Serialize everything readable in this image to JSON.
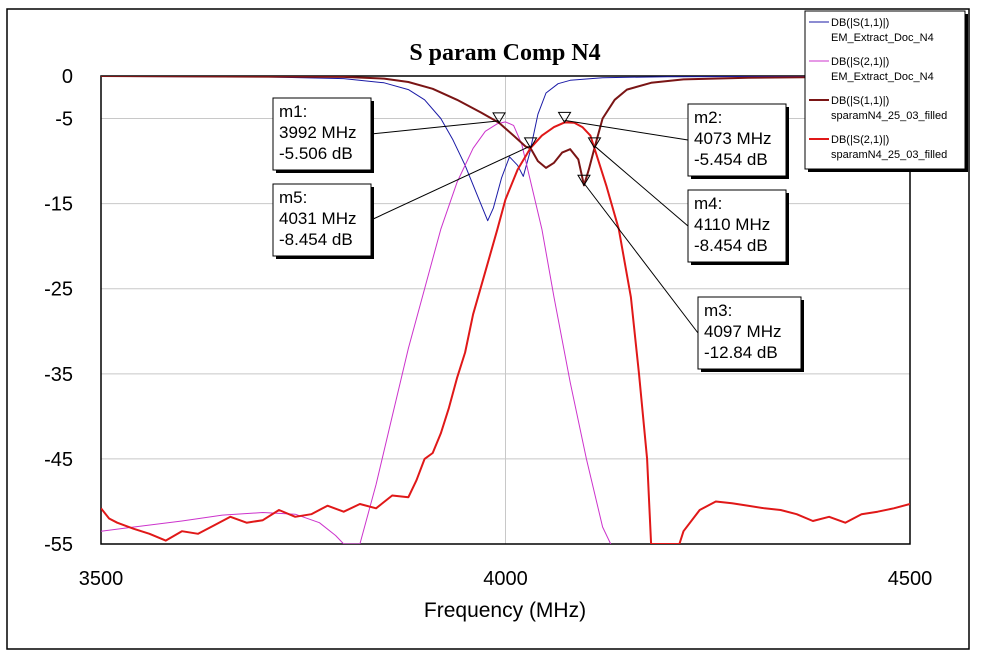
{
  "chart_data": {
    "type": "line",
    "title": "S param Comp N4",
    "xlabel": "Frequency (MHz)",
    "ylabel": "",
    "xlim": [
      3500,
      4500
    ],
    "ylim": [
      -55,
      0
    ],
    "x_ticks": [
      3500,
      4000,
      4500
    ],
    "y_ticks": [
      0,
      -5,
      -15,
      -25,
      -35,
      -45,
      -55
    ],
    "x_tick_labels": [
      "3500",
      "4000",
      "4500"
    ],
    "y_tick_labels": [
      "0",
      "-5",
      "-15",
      "-25",
      "-35",
      "-45",
      "-55"
    ],
    "grid": true,
    "legend_position": "top-right, outside plot",
    "series": [
      {
        "name": "DB(|S(1,1)|)",
        "source": "EM_Extract_Doc_N4",
        "color": "#1a1aa6",
        "points": [
          [
            3500,
            -0.05
          ],
          [
            3700,
            -0.1
          ],
          [
            3800,
            -0.3
          ],
          [
            3850,
            -0.8
          ],
          [
            3880,
            -1.6
          ],
          [
            3900,
            -2.8
          ],
          [
            3920,
            -5
          ],
          [
            3935,
            -7.5
          ],
          [
            3950,
            -10.5
          ],
          [
            3965,
            -14
          ],
          [
            3978,
            -17
          ],
          [
            3985,
            -15.5
          ],
          [
            3995,
            -12
          ],
          [
            4005,
            -9.5
          ],
          [
            4015,
            -10.5
          ],
          [
            4022,
            -11.8
          ],
          [
            4030,
            -9
          ],
          [
            4040,
            -4.5
          ],
          [
            4050,
            -2
          ],
          [
            4065,
            -0.9
          ],
          [
            4080,
            -0.5
          ],
          [
            4120,
            -0.2
          ],
          [
            4200,
            -0.08
          ],
          [
            4500,
            -0.02
          ]
        ]
      },
      {
        "name": "DB(|S(2,1)|)",
        "source": "EM_Extract_Doc_N4",
        "color": "#cc33cc",
        "points": [
          [
            3500,
            -53.5
          ],
          [
            3600,
            -52.3
          ],
          [
            3650,
            -51.6
          ],
          [
            3700,
            -51.3
          ],
          [
            3740,
            -51.5
          ],
          [
            3770,
            -52.5
          ],
          [
            3790,
            -54
          ],
          [
            3800,
            -55
          ],
          [
            3820,
            -55
          ],
          [
            3840,
            -48
          ],
          [
            3860,
            -40
          ],
          [
            3880,
            -32
          ],
          [
            3900,
            -25
          ],
          [
            3920,
            -18
          ],
          [
            3940,
            -12.5
          ],
          [
            3960,
            -8.5
          ],
          [
            3975,
            -6.5
          ],
          [
            3990,
            -5.6
          ],
          [
            4000,
            -5.4
          ],
          [
            4010,
            -5.8
          ],
          [
            4020,
            -8
          ],
          [
            4030,
            -12
          ],
          [
            4045,
            -18
          ],
          [
            4060,
            -26
          ],
          [
            4080,
            -36
          ],
          [
            4100,
            -45
          ],
          [
            4120,
            -53
          ],
          [
            4130,
            -55
          ]
        ]
      },
      {
        "name": "DB(|S(1,1)|)",
        "source": "sparamN4_25_03_filled",
        "color": "#7a1515",
        "points": [
          [
            3500,
            0
          ],
          [
            3800,
            -0.1
          ],
          [
            3850,
            -0.3
          ],
          [
            3880,
            -0.7
          ],
          [
            3910,
            -1.5
          ],
          [
            3940,
            -2.8
          ],
          [
            3970,
            -4.3
          ],
          [
            3992,
            -5.5
          ],
          [
            4010,
            -7
          ],
          [
            4025,
            -8.3
          ],
          [
            4031,
            -8.5
          ],
          [
            4040,
            -10
          ],
          [
            4050,
            -10.8
          ],
          [
            4060,
            -10.2
          ],
          [
            4070,
            -9
          ],
          [
            4080,
            -8.6
          ],
          [
            4090,
            -9.8
          ],
          [
            4097,
            -12.84
          ],
          [
            4103,
            -11
          ],
          [
            4110,
            -8.45
          ],
          [
            4120,
            -5
          ],
          [
            4135,
            -2.8
          ],
          [
            4150,
            -1.6
          ],
          [
            4180,
            -0.8
          ],
          [
            4220,
            -0.4
          ],
          [
            4300,
            -0.2
          ],
          [
            4500,
            -0.05
          ]
        ]
      },
      {
        "name": "DB(|S(2,1)|)",
        "source": "sparamN4_25_03_filled",
        "color": "#e01818",
        "points": [
          [
            3500,
            -50.8
          ],
          [
            3510,
            -52
          ],
          [
            3520,
            -52.5
          ],
          [
            3540,
            -53.2
          ],
          [
            3560,
            -53.8
          ],
          [
            3580,
            -54.6
          ],
          [
            3600,
            -53.5
          ],
          [
            3620,
            -53.8
          ],
          [
            3640,
            -52.8
          ],
          [
            3660,
            -51.8
          ],
          [
            3680,
            -52.5
          ],
          [
            3700,
            -52.2
          ],
          [
            3720,
            -51
          ],
          [
            3740,
            -51.8
          ],
          [
            3760,
            -51.5
          ],
          [
            3780,
            -50.5
          ],
          [
            3800,
            -51.2
          ],
          [
            3820,
            -50.3
          ],
          [
            3840,
            -50.8
          ],
          [
            3860,
            -49.3
          ],
          [
            3880,
            -49.5
          ],
          [
            3890,
            -47.5
          ],
          [
            3900,
            -45
          ],
          [
            3910,
            -44.3
          ],
          [
            3920,
            -42
          ],
          [
            3930,
            -39
          ],
          [
            3940,
            -35.5
          ],
          [
            3950,
            -32.5
          ],
          [
            3960,
            -28
          ],
          [
            3975,
            -23
          ],
          [
            3990,
            -18
          ],
          [
            4000,
            -14.5
          ],
          [
            4015,
            -11
          ],
          [
            4031,
            -8.45
          ],
          [
            4045,
            -7
          ],
          [
            4060,
            -6
          ],
          [
            4073,
            -5.45
          ],
          [
            4085,
            -5.5
          ],
          [
            4095,
            -6
          ],
          [
            4105,
            -7
          ],
          [
            4115,
            -10
          ],
          [
            4125,
            -13
          ],
          [
            4140,
            -18
          ],
          [
            4155,
            -26
          ],
          [
            4165,
            -35
          ],
          [
            4175,
            -45
          ],
          [
            4180,
            -55
          ],
          [
            4215,
            -55
          ],
          [
            4220,
            -53.5
          ],
          [
            4240,
            -51
          ],
          [
            4260,
            -50
          ],
          [
            4280,
            -50.2
          ],
          [
            4300,
            -50.5
          ],
          [
            4320,
            -50.8
          ],
          [
            4340,
            -51
          ],
          [
            4360,
            -51.5
          ],
          [
            4380,
            -52.3
          ],
          [
            4400,
            -51.8
          ],
          [
            4420,
            -52.5
          ],
          [
            4440,
            -51.5
          ],
          [
            4460,
            -51.2
          ],
          [
            4480,
            -50.8
          ],
          [
            4500,
            -50.3
          ]
        ]
      }
    ],
    "markers": [
      {
        "id": "m1",
        "label": "m1:",
        "freq": "3992 MHz",
        "val": "-5.506 dB",
        "x": 3992,
        "y": -5.506,
        "series": 1
      },
      {
        "id": "m2",
        "label": "m2:",
        "freq": "4073 MHz",
        "val": "-5.454 dB",
        "x": 4073,
        "y": -5.454,
        "series": 3
      },
      {
        "id": "m3",
        "label": "m3:",
        "freq": "4097 MHz",
        "val": "-12.84 dB",
        "x": 4097,
        "y": -12.84,
        "series": 2
      },
      {
        "id": "m4",
        "label": "m4:",
        "freq": "4110 MHz",
        "val": "-8.454 dB",
        "x": 4110,
        "y": -8.454,
        "series": 2
      },
      {
        "id": "m5",
        "label": "m5:",
        "freq": "4031 MHz",
        "val": "-8.454 dB",
        "x": 4031,
        "y": -8.454,
        "series": 3
      }
    ]
  }
}
